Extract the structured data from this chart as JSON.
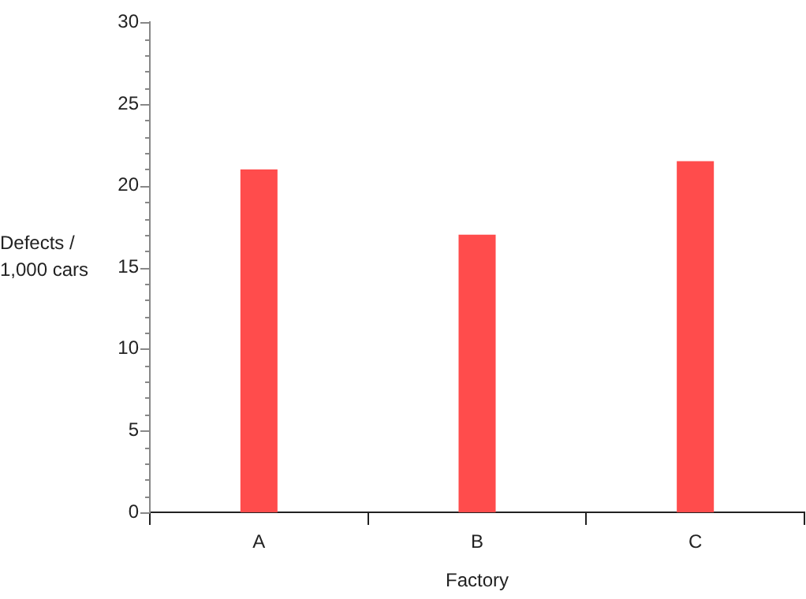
{
  "chart_data": {
    "type": "bar",
    "xlabel": "Factory",
    "ylabel": "Defects / 1,000 cars",
    "categories": [
      "A",
      "B",
      "C"
    ],
    "values": [
      21,
      17,
      21.5
    ],
    "color": "#ff4c4c",
    "ylim": [
      0,
      30
    ],
    "yticks": [
      0,
      {
        "value": 1,
        "label": null
      },
      {
        "value": 2,
        "label": null
      },
      {
        "value": 3,
        "label": null
      },
      {
        "value": 4,
        "label": null
      },
      5,
      {
        "value": 6,
        "label": null
      },
      {
        "value": 7,
        "label": null
      },
      {
        "value": 8,
        "label": null
      },
      {
        "value": 9,
        "label": null
      },
      10,
      {
        "value": 11,
        "label": null
      },
      {
        "value": 12,
        "label": null
      },
      {
        "value": 13,
        "label": null
      },
      {
        "value": 14,
        "label": null
      },
      15,
      {
        "value": 16,
        "label": null
      },
      {
        "value": 17,
        "label": null
      },
      {
        "value": 18,
        "label": null
      },
      {
        "value": 19,
        "label": null
      },
      20,
      {
        "value": 21,
        "label": null
      },
      {
        "value": 22,
        "label": null
      },
      {
        "value": 23,
        "label": null
      },
      {
        "value": 24,
        "label": null
      },
      25,
      {
        "value": 26,
        "label": null
      },
      {
        "value": 27,
        "label": null
      },
      {
        "value": 28,
        "label": null
      },
      {
        "value": 29,
        "label": null
      },
      30
    ],
    "grid": false,
    "legend": false
  }
}
